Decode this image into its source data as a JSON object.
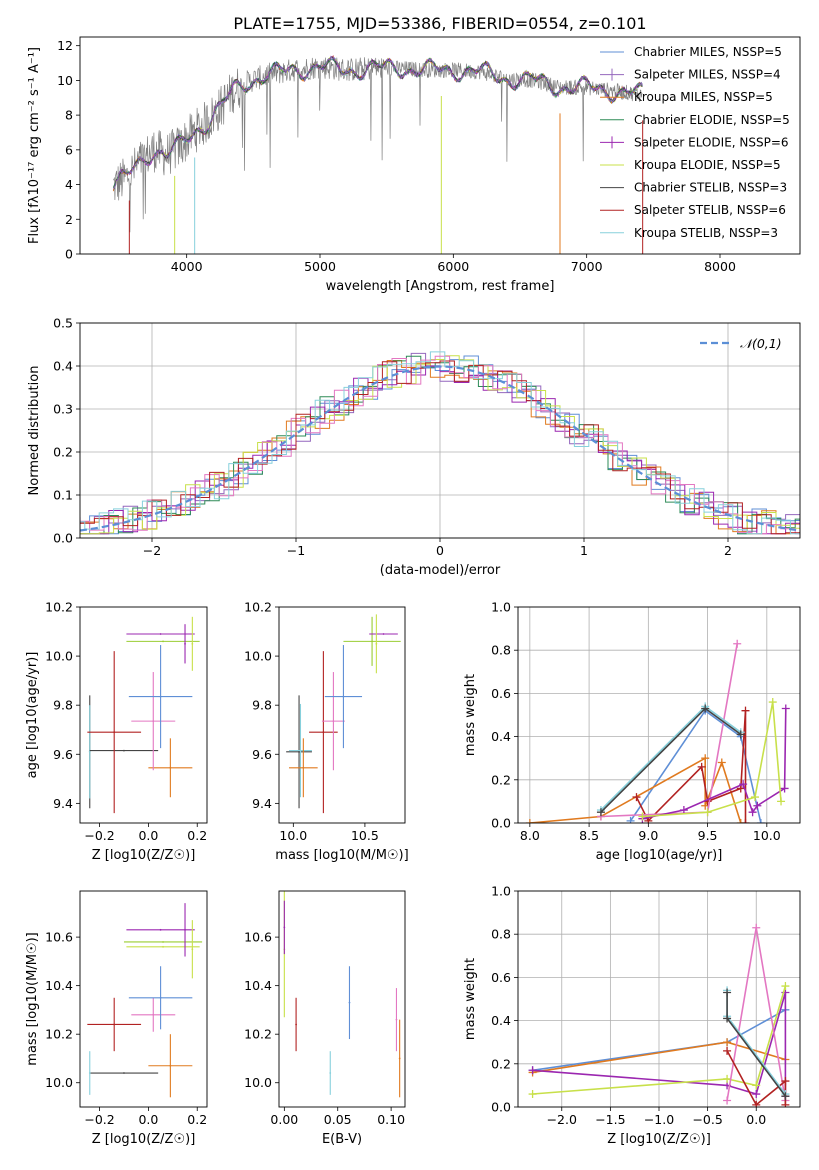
{
  "figure_title": "PLATE=1755, MJD=53386, FIBERID=0554, z=0.101",
  "colors": {
    "chabrier_miles": "#5f8fd6",
    "salpeter_miles": "#9467bd",
    "kroupa_miles": "#e07a1f",
    "chabrier_elodie": "#2e8b57",
    "salpeter_elodie": "#9b27b0",
    "kroupa_elodie": "#c8e04a",
    "chabrier_stelib": "#444444",
    "salpeter_stelib": "#b22222",
    "kroupa_stelib": "#87d0dc",
    "pink": "#e377c2",
    "olive": "#9acd32",
    "gaussian": "#5b8fd6"
  },
  "chart_data": [
    {
      "id": "spectrum",
      "type": "line",
      "title": "PLATE=1755, MJD=53386, FIBERID=0554, z=0.101",
      "xlabel": "wavelength [Angstrom, rest frame]",
      "ylabel": "Flux [fλ10⁻¹⁷ erg cm⁻² s⁻¹ A⁻¹]",
      "xlim": [
        3200,
        8600
      ],
      "ylim": [
        0,
        12.5
      ],
      "xticks": [
        4000,
        5000,
        6000,
        7000,
        8000
      ],
      "yticks": [
        0,
        2,
        4,
        6,
        8,
        10,
        12
      ],
      "legend_position": "right",
      "legend": [
        "Chabrier MILES, NSSP=5",
        "Salpeter MILES, NSSP=4",
        "Kroupa MILES, NSSP=5",
        "Chabrier ELODIE, NSSP=5",
        "Salpeter ELODIE, NSSP=6",
        "Kroupa ELODIE, NSSP=5",
        "Chabrier STELIB, NSSP=3",
        "Salpeter STELIB, NSSP=6",
        "Kroupa STELIB, NSSP=3"
      ],
      "continuum": {
        "x": [
          3450,
          3550,
          3650,
          3750,
          3850,
          3950,
          4050,
          4150,
          4250,
          4350,
          4450,
          4600,
          4800,
          5000,
          5200,
          5400,
          5600,
          5800,
          6000,
          6200,
          6400,
          6600,
          6800,
          7000,
          7200,
          7400
        ],
        "y": [
          3.9,
          4.4,
          5.3,
          6.0,
          5.7,
          6.2,
          7.0,
          7.6,
          8.4,
          9.4,
          9.9,
          10.3,
          10.6,
          10.8,
          10.6,
          10.7,
          10.7,
          10.6,
          10.6,
          10.5,
          10.1,
          10.0,
          9.6,
          9.6,
          9.4,
          9.2
        ]
      }
    },
    {
      "id": "residuals",
      "type": "line",
      "xlabel": "(data-model)/error",
      "ylabel": "Normed distribution",
      "xlim": [
        -2.5,
        2.5
      ],
      "ylim": [
        0,
        0.5
      ],
      "xticks": [
        -2,
        -1,
        0,
        1,
        2
      ],
      "yticks": [
        0.0,
        0.1,
        0.2,
        0.3,
        0.4,
        0.5
      ],
      "grid": true,
      "legend": [
        "𝒩(0,1)"
      ],
      "legend_position": "top-right",
      "gaussian": {
        "mean": 0,
        "sigma": 1
      }
    },
    {
      "id": "z_vs_age",
      "type": "scatter",
      "xlabel": "Z [log10(Z/Z☉)]",
      "ylabel": "age  [log10(age/yr)]",
      "xlim": [
        -0.28,
        0.24
      ],
      "ylim": [
        9.32,
        10.2
      ],
      "xticks": [
        -0.2,
        0.0,
        0.2
      ],
      "yticks": [
        9.4,
        9.6,
        9.8,
        10.0,
        10.2
      ],
      "points": [
        {
          "x": -0.24,
          "y": 9.61,
          "xerr": 0.0,
          "yerr": 0.23,
          "c": "chabrier_stelib"
        },
        {
          "x": -0.24,
          "y": 9.61,
          "xerr": 0.0,
          "yerr": 0.19,
          "c": "kroupa_stelib"
        },
        {
          "x": -0.1,
          "y": 9.615,
          "xerr": 0.14,
          "yerr": 0.0,
          "c": "chabrier_stelib"
        },
        {
          "x": -0.14,
          "y": 9.69,
          "xerr": 0.11,
          "yerr": 0.33,
          "c": "salpeter_stelib"
        },
        {
          "x": 0.09,
          "y": 9.545,
          "xerr": 0.09,
          "yerr": 0.12,
          "c": "kroupa_miles"
        },
        {
          "x": 0.02,
          "y": 9.735,
          "xerr": 0.09,
          "yerr": 0.2,
          "c": "pink"
        },
        {
          "x": 0.05,
          "y": 9.835,
          "xerr": 0.13,
          "yerr": 0.21,
          "c": "chabrier_miles"
        },
        {
          "x": 0.06,
          "y": 10.06,
          "xerr": 0.15,
          "yerr": 0.0,
          "c": "olive"
        },
        {
          "x": 0.05,
          "y": 10.09,
          "xerr": 0.14,
          "yerr": 0.0,
          "c": "salpeter_elodie"
        },
        {
          "x": 0.18,
          "y": 10.05,
          "xerr": 0.0,
          "yerr": 0.11,
          "c": "kroupa_elodie"
        },
        {
          "x": 0.15,
          "y": 10.05,
          "xerr": 0.0,
          "yerr": 0.08,
          "c": "salpeter_elodie"
        }
      ]
    },
    {
      "id": "mass_vs_age",
      "type": "scatter",
      "xlabel": "mass [log10(M/M☉)]",
      "xlim": [
        9.9,
        10.78
      ],
      "ylim": [
        9.32,
        10.2
      ],
      "xticks": [
        10.0,
        10.5
      ],
      "yticks": [
        9.4,
        9.6,
        9.8,
        10.0,
        10.2
      ],
      "points": [
        {
          "x": 10.04,
          "y": 9.61,
          "xerr": 0.09,
          "yerr": 0.0,
          "c": "chabrier_stelib"
        },
        {
          "x": 10.04,
          "y": 9.61,
          "xerr": 0.0,
          "yerr": 0.23,
          "c": "chabrier_stelib"
        },
        {
          "x": 10.05,
          "y": 9.615,
          "xerr": 0.08,
          "yerr": 0.19,
          "c": "kroupa_stelib"
        },
        {
          "x": 10.07,
          "y": 9.545,
          "xerr": 0.1,
          "yerr": 0.12,
          "c": "kroupa_miles"
        },
        {
          "x": 10.21,
          "y": 9.69,
          "xerr": 0.1,
          "yerr": 0.33,
          "c": "salpeter_stelib"
        },
        {
          "x": 10.28,
          "y": 9.735,
          "xerr": 0.08,
          "yerr": 0.2,
          "c": "pink"
        },
        {
          "x": 10.35,
          "y": 9.835,
          "xerr": 0.13,
          "yerr": 0.21,
          "c": "chabrier_miles"
        },
        {
          "x": 10.55,
          "y": 10.06,
          "xerr": 0.2,
          "yerr": 0.1,
          "c": "olive"
        },
        {
          "x": 10.63,
          "y": 10.09,
          "xerr": 0.1,
          "yerr": 0.0,
          "c": "salpeter_elodie"
        },
        {
          "x": 10.58,
          "y": 10.05,
          "xerr": 0.0,
          "yerr": 0.12,
          "c": "kroupa_elodie"
        }
      ]
    },
    {
      "id": "age_vs_weight",
      "type": "line",
      "xlabel": "age  [log10(age/yr)]",
      "ylabel": "mass weight",
      "xlim": [
        7.9,
        10.28
      ],
      "ylim": [
        0,
        1.0
      ],
      "xticks": [
        8.0,
        8.5,
        9.0,
        9.5,
        10.0
      ],
      "yticks": [
        0.0,
        0.2,
        0.4,
        0.6,
        0.8,
        1.0
      ],
      "grid": true,
      "series": [
        {
          "c": "chabrier_miles",
          "x": [
            8.85,
            9.48,
            9.78,
            9.95
          ],
          "y": [
            0.01,
            0.52,
            0.4,
            0.0
          ]
        },
        {
          "c": "kroupa_miles",
          "x": [
            8.0,
            8.6,
            9.48,
            9.48,
            9.62,
            9.78
          ],
          "y": [
            0.0,
            0.03,
            0.3,
            0.08,
            0.28,
            0.0
          ]
        },
        {
          "c": "salpeter_stelib",
          "x": [
            8.9,
            9.0,
            9.45,
            9.5,
            9.78,
            9.82,
            9.82
          ],
          "y": [
            0.12,
            0.01,
            0.26,
            0.1,
            0.16,
            0.52,
            0.0
          ]
        },
        {
          "c": "pink",
          "x": [
            8.6,
            9.5,
            9.75
          ],
          "y": [
            0.03,
            0.05,
            0.83
          ]
        },
        {
          "c": "salpeter_elodie",
          "x": [
            8.95,
            9.3,
            9.8,
            9.88,
            9.92,
            10.15,
            10.16
          ],
          "y": [
            0.02,
            0.06,
            0.18,
            0.05,
            0.08,
            0.16,
            0.53
          ]
        },
        {
          "c": "kroupa_elodie",
          "x": [
            8.95,
            9.5,
            9.9,
            10.05,
            10.12
          ],
          "y": [
            0.03,
            0.05,
            0.12,
            0.56,
            0.1
          ]
        },
        {
          "c": "kroupa_stelib",
          "x": [
            8.6,
            9.48,
            9.78
          ],
          "y": [
            0.06,
            0.54,
            0.42
          ]
        },
        {
          "c": "chabrier_stelib",
          "x": [
            8.6,
            9.48,
            9.78
          ],
          "y": [
            0.05,
            0.53,
            0.41
          ]
        }
      ]
    },
    {
      "id": "z_vs_mass",
      "type": "scatter",
      "xlabel": "Z [log10(Z/Z☉)]",
      "ylabel": "mass [log10(M/M☉)]",
      "xlim": [
        -0.28,
        0.24
      ],
      "ylim": [
        9.9,
        10.79
      ],
      "xticks": [
        -0.2,
        0.0,
        0.2
      ],
      "yticks": [
        10.0,
        10.2,
        10.4,
        10.6
      ],
      "points": [
        {
          "x": -0.1,
          "y": 10.04,
          "xerr": 0.14,
          "yerr": 0.0,
          "c": "chabrier_stelib"
        },
        {
          "x": -0.24,
          "y": 10.04,
          "xerr": 0.0,
          "yerr": 0.09,
          "c": "kroupa_stelib"
        },
        {
          "x": 0.09,
          "y": 10.07,
          "xerr": 0.09,
          "yerr": 0.13,
          "c": "kroupa_miles"
        },
        {
          "x": -0.14,
          "y": 10.24,
          "xerr": 0.11,
          "yerr": 0.11,
          "c": "salpeter_stelib"
        },
        {
          "x": 0.02,
          "y": 10.28,
          "xerr": 0.09,
          "yerr": 0.07,
          "c": "pink"
        },
        {
          "x": 0.05,
          "y": 10.35,
          "xerr": 0.13,
          "yerr": 0.13,
          "c": "chabrier_miles"
        },
        {
          "x": 0.06,
          "y": 10.58,
          "xerr": 0.16,
          "yerr": 0.0,
          "c": "olive"
        },
        {
          "x": 0.06,
          "y": 10.56,
          "xerr": 0.15,
          "yerr": 0.0,
          "c": "kroupa_elodie"
        },
        {
          "x": 0.05,
          "y": 10.63,
          "xerr": 0.14,
          "yerr": 0.0,
          "c": "salpeter_elodie"
        },
        {
          "x": 0.18,
          "y": 10.55,
          "xerr": 0.0,
          "yerr": 0.12,
          "c": "kroupa_elodie"
        },
        {
          "x": 0.15,
          "y": 10.63,
          "xerr": 0.0,
          "yerr": 0.11,
          "c": "salpeter_elodie"
        }
      ]
    },
    {
      "id": "ebv_vs_mass",
      "type": "scatter",
      "xlabel": "E(B-V)",
      "xlim": [
        -0.005,
        0.113
      ],
      "ylim": [
        9.9,
        10.79
      ],
      "xticks": [
        0.0,
        0.05,
        0.1
      ],
      "yticks": [
        10.0,
        10.2,
        10.4,
        10.6
      ],
      "points": [
        {
          "x": 0.0,
          "y": 10.55,
          "xerr": 0.0,
          "yerr": 0.28,
          "c": "kroupa_elodie"
        },
        {
          "x": 0.0,
          "y": 10.64,
          "xerr": 0.0,
          "yerr": 0.11,
          "c": "salpeter_elodie"
        },
        {
          "x": 0.011,
          "y": 10.24,
          "xerr": 0.0,
          "yerr": 0.11,
          "c": "salpeter_stelib"
        },
        {
          "x": 0.043,
          "y": 10.04,
          "xerr": 0.0,
          "yerr": 0.09,
          "c": "kroupa_stelib"
        },
        {
          "x": 0.061,
          "y": 10.33,
          "xerr": 0.0,
          "yerr": 0.15,
          "c": "chabrier_miles"
        },
        {
          "x": 0.105,
          "y": 10.26,
          "xerr": 0.0,
          "yerr": 0.13,
          "c": "pink"
        },
        {
          "x": 0.108,
          "y": 10.1,
          "xerr": 0.0,
          "yerr": 0.16,
          "c": "kroupa_miles"
        }
      ]
    },
    {
      "id": "z_vs_weight",
      "type": "line",
      "xlabel": "Z [log10(Z/Z☉)]",
      "ylabel": "mass weight",
      "xlim": [
        -2.45,
        0.45
      ],
      "ylim": [
        0,
        1.0
      ],
      "xticks": [
        -2.0,
        -1.5,
        -1.0,
        -0.5,
        0.0
      ],
      "yticks": [
        0.0,
        0.2,
        0.4,
        0.6,
        0.8,
        1.0
      ],
      "grid": true,
      "series": [
        {
          "c": "chabrier_miles",
          "x": [
            -2.3,
            -0.3,
            0.3
          ],
          "y": [
            0.17,
            0.3,
            0.45
          ]
        },
        {
          "c": "kroupa_miles",
          "x": [
            -2.3,
            -0.3,
            0.3
          ],
          "y": [
            0.16,
            0.3,
            0.22
          ]
        },
        {
          "c": "salpeter_elodie",
          "x": [
            -2.3,
            -0.3,
            0.0,
            0.3,
            0.3
          ],
          "y": [
            0.17,
            0.1,
            0.06,
            0.53,
            0.05
          ]
        },
        {
          "c": "kroupa_elodie",
          "x": [
            -2.3,
            -0.3,
            0.0,
            0.3
          ],
          "y": [
            0.06,
            0.13,
            0.1,
            0.56
          ]
        },
        {
          "c": "pink",
          "x": [
            -0.3,
            0.0,
            0.3
          ],
          "y": [
            0.03,
            0.83,
            0.03
          ]
        },
        {
          "c": "salpeter_stelib",
          "x": [
            -0.3,
            0.0,
            0.3,
            0.3
          ],
          "y": [
            0.26,
            0.01,
            0.12,
            0.01
          ]
        },
        {
          "c": "kroupa_stelib",
          "x": [
            -0.3,
            -0.3,
            0.3
          ],
          "y": [
            0.54,
            0.42,
            0.06
          ]
        },
        {
          "c": "chabrier_stelib",
          "x": [
            -0.3,
            -0.3,
            0.3
          ],
          "y": [
            0.53,
            0.41,
            0.05
          ]
        }
      ]
    }
  ]
}
